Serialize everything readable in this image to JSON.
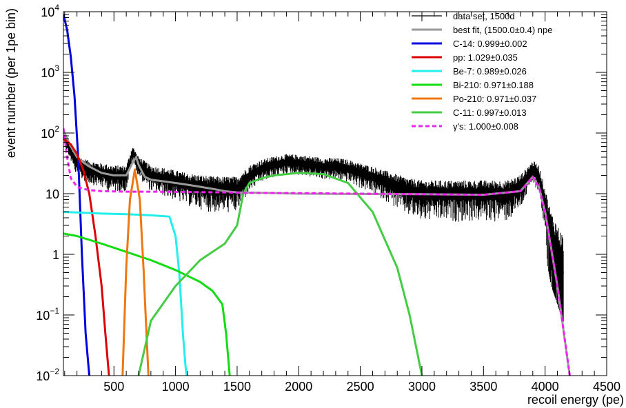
{
  "chart_data": {
    "type": "line",
    "title": "",
    "xlabel": "recoil energy (pe)",
    "ylabel": "event number (per 1pe bin)",
    "xlim": [
      90,
      4500
    ],
    "ylim": [
      0.01,
      10000
    ],
    "yscale": "log",
    "grid": false,
    "legend_position": "top-right",
    "x_ticks": [
      "500",
      "1000",
      "1500",
      "2000",
      "2500",
      "3000",
      "3500",
      "4000",
      "4500"
    ],
    "y_ticks": [
      {
        "base": "10",
        "exp": "4",
        "value": 10000
      },
      {
        "base": "10",
        "exp": "3",
        "value": 1000
      },
      {
        "base": "10",
        "exp": "2",
        "value": 100
      },
      {
        "base": "10",
        "exp": "",
        "value": 10
      },
      {
        "base": "1",
        "exp": "",
        "value": 1
      },
      {
        "base": "10",
        "exp": "−1",
        "value": 0.1
      },
      {
        "base": "10",
        "exp": "−2",
        "value": 0.01
      }
    ],
    "series": [
      {
        "name": "data set, 1500d",
        "color": "#000000",
        "style": "histogram",
        "x": [
          100,
          200,
          300,
          400,
          500,
          600,
          650,
          700,
          800,
          900,
          1000,
          1100,
          1200,
          1300,
          1400,
          1500,
          1600,
          1700,
          1800,
          1900,
          2000,
          2100,
          2200,
          2300,
          2400,
          2500,
          2600,
          2700,
          2800,
          2900,
          3000,
          3100,
          3200,
          3300,
          3400,
          3500,
          3600,
          3700,
          3800,
          3900,
          3950,
          4000,
          4050,
          4100,
          4150
        ],
        "y": [
          80,
          30,
          25,
          22,
          20,
          20,
          48,
          30,
          20,
          18,
          16,
          14,
          13,
          12,
          12,
          12,
          20,
          26,
          30,
          33,
          32,
          30,
          28,
          28,
          26,
          22,
          19,
          16,
          13,
          11,
          10,
          10,
          10,
          10,
          10,
          10,
          10,
          10,
          13,
          25,
          20,
          7,
          2,
          1,
          0.5
        ]
      },
      {
        "name": "best fit, (1500.0±0.4) npe",
        "color": "#999999",
        "x": [
          90,
          150,
          200,
          250,
          300,
          400,
          500,
          600,
          650,
          680,
          700,
          750,
          800,
          900,
          1000,
          1100,
          1200,
          1300,
          1400,
          1500,
          2000,
          3000,
          3500,
          3800,
          3900,
          3950,
          4000,
          4100,
          4200
        ],
        "y": [
          110,
          60,
          40,
          33,
          28,
          22,
          20,
          20,
          32,
          40,
          30,
          19,
          17,
          16,
          15,
          14,
          13,
          12,
          11,
          10.5,
          10,
          9.8,
          9.6,
          11,
          19,
          13,
          5,
          0.3,
          0.01
        ]
      },
      {
        "name": "C-14: 0.999±0.002",
        "color": "#0000dd",
        "x": [
          90,
          120,
          150,
          180,
          210,
          240,
          270,
          300
        ],
        "y": [
          9000,
          5000,
          1800,
          400,
          40,
          1,
          0.05,
          0.01
        ]
      },
      {
        "name": "pp: 1.029±0.035",
        "color": "#dd0000",
        "x": [
          90,
          150,
          200,
          250,
          300,
          350,
          400,
          430,
          460
        ],
        "y": [
          80,
          65,
          45,
          25,
          10,
          2,
          0.3,
          0.05,
          0.01
        ]
      },
      {
        "name": "Be-7: 0.989±0.026",
        "color": "#22eeee",
        "x": [
          90,
          200,
          400,
          600,
          800,
          950,
          1000,
          1030,
          1060,
          1080,
          1090
        ],
        "y": [
          5,
          4.9,
          4.7,
          4.6,
          4.4,
          4.2,
          2,
          0.5,
          0.05,
          0.015,
          0.01
        ]
      },
      {
        "name": "Bi-210: 0.971±0.188",
        "color": "#11dd11",
        "x": [
          90,
          200,
          400,
          600,
          800,
          1000,
          1200,
          1300,
          1380,
          1410,
          1440
        ],
        "y": [
          2.2,
          2,
          1.5,
          1.1,
          0.8,
          0.55,
          0.35,
          0.25,
          0.15,
          0.05,
          0.01
        ]
      },
      {
        "name": "Po-210: 0.971±0.037",
        "color": "#ee7711",
        "x": [
          570,
          600,
          630,
          670,
          710,
          740,
          780
        ],
        "y": [
          0.01,
          0.6,
          8,
          25,
          8,
          0.6,
          0.01
        ]
      },
      {
        "name": "C-11: 0.997±0.013",
        "color": "#44cc44",
        "x": [
          700,
          800,
          1000,
          1200,
          1400,
          1500,
          1550,
          1600,
          1700,
          1800,
          2000,
          2200,
          2400,
          2600,
          2800,
          2900,
          3000
        ],
        "y": [
          0.01,
          0.08,
          0.3,
          0.8,
          1.5,
          3,
          10,
          15,
          18,
          20,
          22,
          21,
          15,
          5,
          0.6,
          0.1,
          0.01
        ]
      },
      {
        "name": "γ's: 1.000±0.008",
        "color": "#ee22ee",
        "style": "dashed",
        "x": [
          90,
          120,
          150,
          200,
          250,
          300,
          400,
          600,
          800,
          1000,
          1200,
          1400,
          1600,
          2000,
          2500,
          3000,
          3500,
          3800,
          3900,
          3950,
          4000,
          4100,
          4200
        ],
        "y": [
          120,
          40,
          18,
          13,
          12,
          11.5,
          11,
          10.8,
          10.8,
          10.7,
          10.6,
          10.5,
          10.3,
          10.2,
          10,
          9.8,
          9.6,
          11,
          19,
          13,
          5,
          0.3,
          0.01
        ]
      }
    ]
  }
}
